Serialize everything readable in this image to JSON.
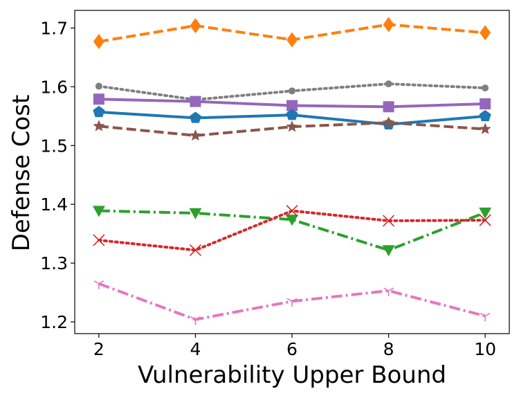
{
  "chart_data": {
    "type": "line",
    "title": "",
    "xlabel": "Vulnerability Upper Bound",
    "ylabel": "Defense Cost",
    "x": [
      2,
      4,
      6,
      8,
      10
    ],
    "xlim": [
      1.5,
      10.5
    ],
    "ylim": [
      1.18,
      1.73
    ],
    "xticks": [
      "2",
      "4",
      "6",
      "8",
      "10"
    ],
    "yticks": [
      "1.2",
      "1.3",
      "1.4",
      "1.5",
      "1.6",
      "1.7"
    ],
    "grid": false,
    "legend": "none",
    "series": [
      {
        "values": [
          1.677,
          1.704,
          1.68,
          1.706,
          1.692
        ],
        "color": "#ff7f0e",
        "dash": "dashed",
        "marker": "diamond"
      },
      {
        "values": [
          1.601,
          1.578,
          1.593,
          1.605,
          1.598
        ],
        "color": "#7f7f7f",
        "dash": "dotted",
        "marker": "circle"
      },
      {
        "values": [
          1.579,
          1.575,
          1.568,
          1.566,
          1.571
        ],
        "color": "#9467bd",
        "dash": "solid",
        "marker": "square"
      },
      {
        "values": [
          1.557,
          1.547,
          1.552,
          1.536,
          1.55
        ],
        "color": "#1f77b4",
        "dash": "solid",
        "marker": "pentagon"
      },
      {
        "values": [
          1.533,
          1.517,
          1.532,
          1.539,
          1.528
        ],
        "color": "#8c564b",
        "dash": "dashed",
        "marker": "star"
      },
      {
        "values": [
          1.389,
          1.385,
          1.374,
          1.322,
          1.386
        ],
        "color": "#2ca02c",
        "dash": "dashdot",
        "marker": "triangle-down"
      },
      {
        "values": [
          1.339,
          1.322,
          1.389,
          1.372,
          1.373
        ],
        "color": "#d62728",
        "dash": "dotted",
        "marker": "x"
      },
      {
        "values": [
          1.265,
          1.204,
          1.235,
          1.253,
          1.21
        ],
        "color": "#e377c2",
        "dash": "dashdot",
        "marker": "tri-down"
      }
    ]
  }
}
